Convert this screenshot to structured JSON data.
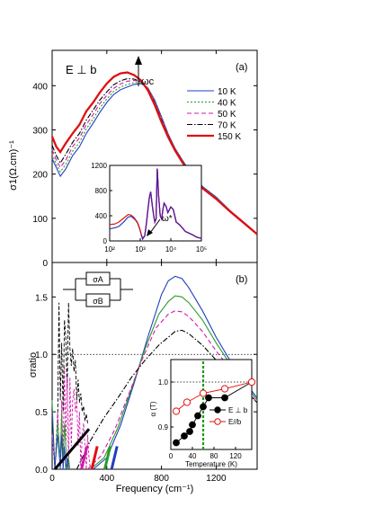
{
  "figure": {
    "xlabel": "Frequency (cm⁻¹)",
    "x_ticks": [
      "0",
      "400",
      "800",
      "1200"
    ]
  },
  "chart_data": [
    {
      "panel": "(a)",
      "type": "line",
      "annotation": "E ⊥ b",
      "arrow_label": "ωc",
      "ylabel": "σ1(Ω.cm)⁻¹",
      "xlim": [
        0,
        1500
      ],
      "ylim": [
        0,
        480
      ],
      "y_ticks": [
        0,
        100,
        200,
        300,
        400
      ],
      "legend_position": "right",
      "series": [
        {
          "name": "10 K",
          "color": "#1f3fbf",
          "dash": "",
          "width": 1.1,
          "x": [
            0,
            30,
            60,
            100,
            150,
            200,
            250,
            300,
            350,
            400,
            450,
            500,
            550,
            600,
            650,
            700,
            750,
            800,
            850,
            900,
            950,
            1000,
            1100,
            1200,
            1300,
            1400,
            1500
          ],
          "y": [
            235,
            215,
            195,
            212,
            242,
            262,
            292,
            315,
            340,
            362,
            380,
            391,
            397,
            403,
            405,
            395,
            368,
            330,
            290,
            258,
            233,
            210,
            172,
            148,
            118,
            92,
            65
          ]
        },
        {
          "name": "40 K",
          "color": "#2a9a2a",
          "dash": "2,2",
          "width": 1.1,
          "x": [
            0,
            30,
            60,
            100,
            150,
            200,
            250,
            300,
            350,
            400,
            450,
            500,
            550,
            600,
            650,
            700,
            750,
            800,
            850,
            900,
            950,
            1000,
            1100,
            1200,
            1300,
            1400,
            1500
          ],
          "y": [
            245,
            222,
            205,
            222,
            252,
            272,
            302,
            325,
            350,
            370,
            387,
            397,
            403,
            407,
            407,
            395,
            366,
            328,
            289,
            257,
            232,
            209,
            171,
            147,
            118,
            92,
            65
          ]
        },
        {
          "name": "50 K",
          "color": "#d11aa8",
          "dash": "5,3",
          "width": 1.1,
          "x": [
            0,
            30,
            60,
            100,
            150,
            200,
            250,
            300,
            350,
            400,
            450,
            500,
            550,
            600,
            650,
            700,
            750,
            800,
            850,
            900,
            950,
            1000,
            1100,
            1200,
            1300,
            1400,
            1500
          ],
          "y": [
            255,
            232,
            215,
            232,
            262,
            282,
            312,
            335,
            360,
            378,
            394,
            404,
            410,
            412,
            409,
            394,
            364,
            326,
            288,
            256,
            231,
            208,
            170,
            146,
            118,
            92,
            65
          ]
        },
        {
          "name": "70 K",
          "color": "#000000",
          "dash": "6,2,1.5,2",
          "width": 1.1,
          "x": [
            0,
            30,
            60,
            100,
            150,
            200,
            250,
            300,
            350,
            400,
            450,
            500,
            550,
            600,
            650,
            700,
            750,
            800,
            850,
            900,
            950,
            1000,
            1100,
            1200,
            1300,
            1400,
            1500
          ],
          "y": [
            265,
            242,
            225,
            245,
            272,
            292,
            322,
            345,
            368,
            386,
            402,
            411,
            416,
            415,
            409,
            392,
            361,
            323,
            286,
            255,
            230,
            207,
            169,
            145,
            117,
            91,
            65
          ]
        },
        {
          "name": "150 K",
          "color": "#e01010",
          "dash": "",
          "width": 2.3,
          "x": [
            0,
            30,
            60,
            100,
            150,
            200,
            250,
            300,
            350,
            400,
            450,
            500,
            550,
            600,
            650,
            700,
            750,
            800,
            850,
            900,
            950,
            1000,
            1100,
            1200,
            1300,
            1400,
            1500
          ],
          "y": [
            285,
            262,
            250,
            270,
            292,
            312,
            342,
            362,
            385,
            405,
            420,
            428,
            430,
            424,
            412,
            390,
            357,
            318,
            283,
            253,
            228,
            205,
            168,
            144,
            116,
            90,
            64
          ]
        }
      ]
    },
    {
      "panel": "(a) inset",
      "type": "line",
      "arrow_label": "ω*",
      "x_scale": "log",
      "xlim": [
        100,
        100000
      ],
      "ylim": [
        0,
        1200
      ],
      "y_ticks": [
        0,
        400,
        800,
        1200
      ],
      "x_ticks": [
        "10²",
        "10³",
        "10⁴",
        "10⁵"
      ],
      "series": [
        {
          "color": "#1f3fbf",
          "x": [
            100,
            150,
            200,
            300,
            400,
            500,
            600,
            700,
            800,
            900,
            1000,
            1100,
            1200,
            1400,
            1600,
            1800,
            2000,
            2200,
            2500,
            2800,
            3000,
            3300,
            3600,
            4000,
            4500,
            5000,
            5500,
            6000,
            7000,
            8000,
            10000,
            12000,
            15000,
            20000,
            30000,
            50000,
            70000,
            100000
          ],
          "y": [
            190,
            210,
            230,
            310,
            380,
            390,
            360,
            330,
            290,
            230,
            160,
            80,
            30,
            80,
            280,
            520,
            700,
            780,
            550,
            380,
            300,
            350,
            1150,
            700,
            400,
            350,
            500,
            600,
            550,
            450,
            540,
            500,
            300,
            250,
            150,
            100,
            60,
            40
          ]
        },
        {
          "color": "#e01010",
          "x": [
            100,
            150,
            200,
            300,
            400,
            500,
            600,
            700,
            800,
            900,
            1000,
            1100,
            1200,
            1400,
            1600,
            1800,
            2000,
            2200,
            2500,
            2800,
            3000,
            3300,
            3600,
            4000,
            4500,
            5000,
            5500,
            6000,
            7000,
            8000,
            10000,
            12000,
            15000,
            20000,
            30000,
            50000,
            70000,
            100000
          ],
          "y": [
            260,
            270,
            300,
            370,
            420,
            410,
            380,
            340,
            300,
            240,
            170,
            90,
            35,
            85,
            285,
            520,
            700,
            780,
            550,
            380,
            300,
            350,
            1150,
            700,
            400,
            350,
            500,
            600,
            550,
            450,
            540,
            500,
            300,
            250,
            150,
            100,
            60,
            40
          ]
        }
      ]
    },
    {
      "panel": "(b)",
      "type": "line",
      "ylabel": "σratio",
      "diagram_labels": [
        "σA",
        "σB"
      ],
      "xlim": [
        0,
        1500
      ],
      "ylim": [
        0,
        1.8
      ],
      "y_ticks": [
        0.0,
        0.5,
        1.0,
        1.5
      ],
      "series": [
        {
          "color": "#1f3fbf",
          "dash": "",
          "x": [
            300,
            400,
            500,
            600,
            700,
            800,
            850,
            900,
            950,
            1000,
            1100,
            1200,
            1300,
            1400,
            1500
          ],
          "y": [
            0.0,
            0.1,
            0.38,
            0.75,
            1.15,
            1.52,
            1.64,
            1.68,
            1.66,
            1.58,
            1.38,
            1.15,
            0.95,
            0.78,
            0.62
          ]
        },
        {
          "color": "#2a9a2a",
          "dash": "",
          "x": [
            280,
            380,
            480,
            580,
            680,
            780,
            850,
            900,
            950,
            1000,
            1100,
            1200,
            1300,
            1400,
            1500
          ],
          "y": [
            0.0,
            0.1,
            0.36,
            0.7,
            1.05,
            1.35,
            1.46,
            1.51,
            1.5,
            1.45,
            1.3,
            1.1,
            0.92,
            0.76,
            0.6
          ]
        },
        {
          "color": "#d11aa8",
          "dash": "5,3",
          "x": [
            260,
            360,
            460,
            560,
            660,
            760,
            850,
            900,
            950,
            1000,
            1100,
            1200,
            1300,
            1400,
            1500
          ],
          "y": [
            0.0,
            0.12,
            0.35,
            0.65,
            0.96,
            1.23,
            1.35,
            1.38,
            1.37,
            1.33,
            1.2,
            1.03,
            0.88,
            0.73,
            0.58
          ]
        },
        {
          "color": "#000000",
          "dash": "6,2,1.5,2",
          "x": [
            180,
            280,
            380,
            480,
            580,
            680,
            780,
            850,
            900,
            950,
            1000,
            1100,
            1200,
            1300,
            1400,
            1500
          ],
          "y": [
            0.0,
            0.25,
            0.45,
            0.62,
            0.8,
            0.95,
            1.08,
            1.15,
            1.2,
            1.21,
            1.18,
            1.08,
            0.95,
            0.82,
            0.7,
            0.58
          ]
        }
      ],
      "low_freq_traces": [
        {
          "color": "#000000",
          "dash": "4,2",
          "x": [
            40,
            50,
            60,
            70,
            80,
            90,
            100,
            110,
            120,
            130,
            140,
            150,
            160,
            170,
            180,
            190,
            200,
            210,
            220,
            230,
            240,
            250,
            260
          ],
          "y": [
            0.4,
            1.45,
            0.6,
            1.1,
            0.5,
            1.3,
            1.15,
            0.7,
            1.45,
            1.05,
            0.9,
            1.05,
            0.85,
            0.95,
            0.6,
            0.78,
            0.58,
            0.66,
            0.5,
            0.55,
            0.42,
            0.48,
            0.4
          ]
        },
        {
          "color": "#d11aa8",
          "dash": "3,2",
          "x": [
            0,
            20,
            40,
            60,
            70,
            80,
            90,
            100,
            110,
            120,
            130,
            140,
            150,
            160,
            170,
            180,
            190,
            200,
            210,
            220,
            230,
            240,
            250,
            260,
            270,
            280
          ],
          "y": [
            0.3,
            0.0,
            0.5,
            0.0,
            0.6,
            0.1,
            0.9,
            0.2,
            0.8,
            0.0,
            0.8,
            0.2,
            0.6,
            0.7,
            0.5,
            0.6,
            0.2,
            0.5,
            0.0,
            0.3,
            0.4,
            0.2,
            0.0,
            0.3,
            0.1,
            0.0
          ]
        },
        {
          "color": "#2a9a2a",
          "dash": "",
          "x": [
            0,
            20,
            40,
            60,
            70,
            80,
            90,
            100,
            110,
            120,
            130
          ],
          "y": [
            0.6,
            0.0,
            0.4,
            0.1,
            0.5,
            0.0,
            0.4,
            0.2,
            0.0,
            0.1,
            0.0
          ]
        },
        {
          "color": "#1f3fbf",
          "dash": "",
          "x": [
            0,
            20,
            40,
            60,
            70,
            80,
            90,
            100,
            110,
            120
          ],
          "y": [
            0.5,
            0.0,
            0.3,
            0.0,
            0.3,
            0.0,
            0.2,
            0.0,
            0.1,
            0.0
          ]
        }
      ],
      "fit_segments": [
        {
          "color": "#000000",
          "x": [
            20,
            270
          ],
          "y": [
            0.0,
            0.35
          ]
        },
        {
          "color": "#d11aa8",
          "x": [
            215,
            255
          ],
          "y": [
            0.0,
            0.2
          ]
        },
        {
          "color": "#e01010",
          "x": [
            290,
            330
          ],
          "y": [
            0.0,
            0.2
          ]
        },
        {
          "color": "#2a9a2a",
          "x": [
            385,
            425
          ],
          "y": [
            0.0,
            0.2
          ]
        },
        {
          "color": "#1f3fbf",
          "x": [
            435,
            475
          ],
          "y": [
            0.0,
            0.2
          ]
        }
      ]
    },
    {
      "panel": "(b) inset",
      "type": "scatter",
      "ylabel": "α (T)",
      "xlabel": "Temperature (K)",
      "xlim": [
        0,
        150
      ],
      "ylim": [
        0.85,
        1.05
      ],
      "x_ticks": [
        0,
        40,
        80,
        120
      ],
      "y_ticks": [
        0.9,
        1.0
      ],
      "vline_x": 60,
      "legend_position": "bottom-right",
      "series": [
        {
          "name": "E ⊥ b",
          "color": "#000000",
          "filled": true,
          "x": [
            10,
            25,
            35,
            40,
            50,
            60,
            70,
            100,
            150
          ],
          "y": [
            0.865,
            0.88,
            0.89,
            0.905,
            0.925,
            0.945,
            0.965,
            0.965,
            1.0
          ]
        },
        {
          "name": "E//b",
          "color": "#e01010",
          "filled": false,
          "x": [
            10,
            30,
            60,
            100,
            150
          ],
          "y": [
            0.935,
            0.955,
            0.975,
            0.985,
            1.0
          ]
        }
      ]
    }
  ]
}
